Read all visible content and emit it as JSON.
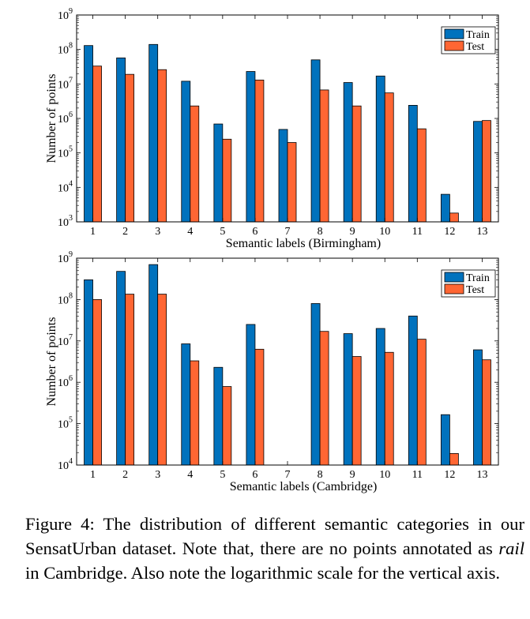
{
  "chart_data": [
    {
      "type": "bar",
      "xlabel": "Semantic labels (Birmingham)",
      "ylabel": "Number of points",
      "yscale": "log",
      "ylim": [
        1000,
        1000000000
      ],
      "yticks": [
        3,
        4,
        5,
        6,
        7,
        8,
        9
      ],
      "categories": [
        "1",
        "2",
        "3",
        "4",
        "5",
        "6",
        "7",
        "8",
        "9",
        "10",
        "11",
        "12",
        "13"
      ],
      "legend": "top-right",
      "grid": false,
      "series": [
        {
          "name": "Train",
          "color": "#0072BD",
          "values": [
            130000000,
            57000000,
            140000000,
            12000000,
            690000,
            23000000,
            480000,
            50000000,
            11000000,
            17000000,
            2400000,
            6300,
            820000
          ]
        },
        {
          "name": "Test",
          "color": "#FF6633",
          "values": [
            33000000,
            19000000,
            26000000,
            2300000,
            250000,
            13000000,
            200000,
            6700000,
            2300000,
            5500000,
            500000,
            1800,
            870000
          ]
        }
      ]
    },
    {
      "type": "bar",
      "xlabel": "Semantic labels (Cambridge)",
      "ylabel": "Number of points",
      "yscale": "log",
      "ylim": [
        10000,
        1000000000
      ],
      "yticks": [
        4,
        5,
        6,
        7,
        8,
        9
      ],
      "categories": [
        "1",
        "2",
        "3",
        "4",
        "5",
        "6",
        "7",
        "8",
        "9",
        "10",
        "11",
        "12",
        "13"
      ],
      "legend": "top-right",
      "grid": false,
      "series": [
        {
          "name": "Train",
          "color": "#0072BD",
          "values": [
            300000000,
            480000000,
            700000000,
            8500000,
            2300000,
            25000000,
            0,
            80000000,
            15000000,
            20000000,
            40000000,
            165000,
            6100000
          ]
        },
        {
          "name": "Test",
          "color": "#FF6633",
          "values": [
            100000000,
            135000000,
            135000000,
            3300000,
            790000,
            6300000,
            0,
            17000000,
            4200000,
            5300000,
            11000000,
            19000,
            3500000
          ]
        }
      ]
    }
  ],
  "caption": {
    "prefix": "Figure 4: The distribution of different semantic categories in our SensatUrban dataset. Note that, there are no points annotated as ",
    "italic": "rail",
    "suffix": " in Cambridge. Also note the logarithmic scale for the vertical axis."
  }
}
